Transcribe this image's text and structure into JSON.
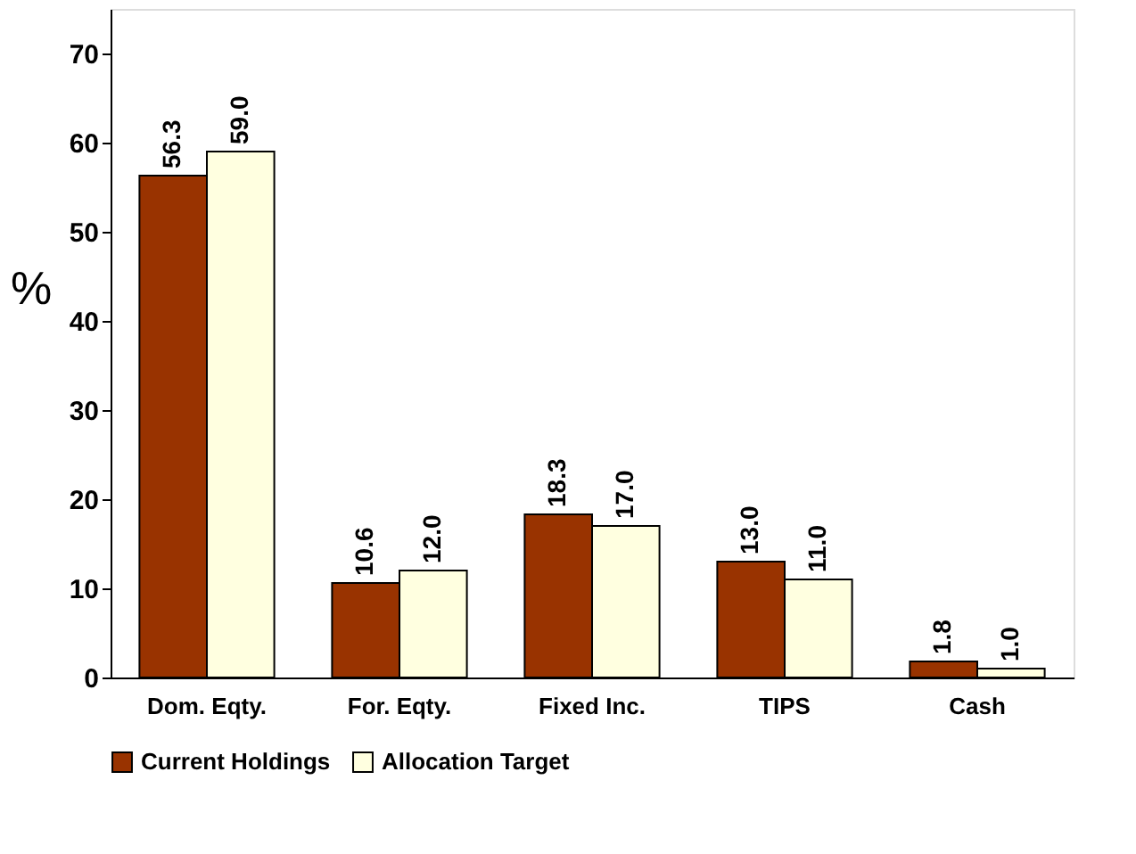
{
  "chart_data": {
    "type": "bar",
    "ylabel": "%",
    "categories": [
      "Dom. Eqty.",
      "For. Eqty.",
      "Fixed Inc.",
      "TIPS",
      "Cash"
    ],
    "series": [
      {
        "name": "Current Holdings",
        "color": "#993300",
        "values": [
          56.3,
          10.6,
          18.3,
          13.0,
          1.8
        ],
        "value_labels": [
          "56.3",
          "10.6",
          "18.3",
          "13.0",
          "1.8"
        ]
      },
      {
        "name": "Allocation Target",
        "color": "#ffffe0",
        "values": [
          59.0,
          12.0,
          17.0,
          11.0,
          1.0
        ],
        "value_labels": [
          "59.0",
          "12.0",
          "17.0",
          "11.0",
          "1.0"
        ]
      }
    ],
    "ylim": [
      0,
      75
    ],
    "yticks": [
      0,
      10,
      20,
      30,
      40,
      50,
      60,
      70
    ],
    "grid": false,
    "legend": "bottom"
  }
}
